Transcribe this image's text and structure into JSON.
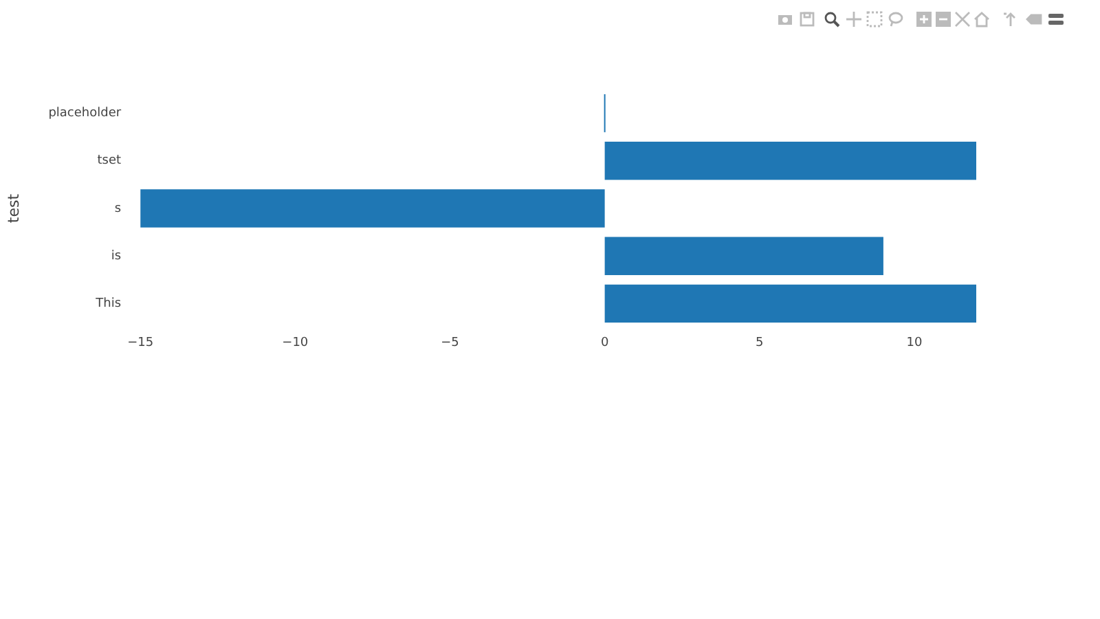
{
  "chart_data": {
    "type": "bar",
    "orientation": "horizontal",
    "ylabel": "test",
    "categories": [
      "placeholder",
      "tset",
      "s",
      "is",
      "This"
    ],
    "values": [
      0,
      12,
      -15,
      9,
      12
    ],
    "color": "#1f77b4",
    "xlim": [
      -15,
      12
    ],
    "xticks": [
      {
        "value": -15,
        "label": "−15"
      },
      {
        "value": -10,
        "label": "−10"
      },
      {
        "value": -5,
        "label": "−5"
      },
      0,
      5,
      10
    ],
    "grid": false,
    "legend": false
  }
}
